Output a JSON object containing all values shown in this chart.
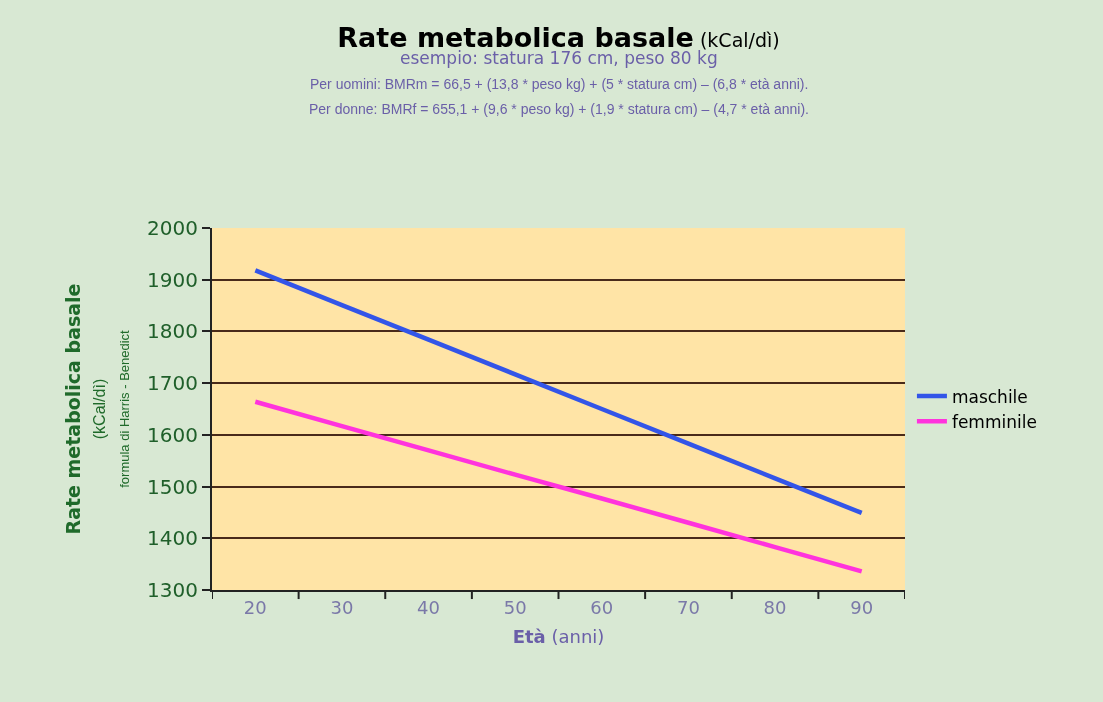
{
  "chart_data": {
    "type": "line",
    "title": "Rate metabolica basale (kCal/dì)",
    "subtitle": "esempio: statura 176 cm, peso 80 kg",
    "annotations": [
      "Per uomini: BMRm = 66,5 + (13,8 * peso kg) + (5 * statura cm) – (6,8 * età anni).",
      "Per donne: BMRf = 655,1 + (9,6 * peso kg) + (1,9 * statura cm) – (4,7 * età anni)."
    ],
    "xlabel": "Età (anni)",
    "ylabel": "Rate metabolica basale\n(kCal/dì)\nformula di Harris - Benedict",
    "categories": [
      "20",
      "30",
      "40",
      "50",
      "60",
      "70",
      "80",
      "90"
    ],
    "series": [
      {
        "name": "maschile",
        "color": "#3355e8",
        "values": [
          1918,
          1851,
          1784,
          1717,
          1650,
          1583,
          1516,
          1449
        ]
      },
      {
        "name": "femminile",
        "color": "#ff33dd",
        "values": [
          1664,
          1617,
          1570,
          1523,
          1477,
          1430,
          1383,
          1336
        ]
      }
    ],
    "ylim": [
      1300,
      2000
    ],
    "yticks": [
      1300,
      1400,
      1500,
      1600,
      1700,
      1800,
      1900,
      2000
    ],
    "grid": "y",
    "legend": "right",
    "marker": "none",
    "line_style": "solid"
  }
}
